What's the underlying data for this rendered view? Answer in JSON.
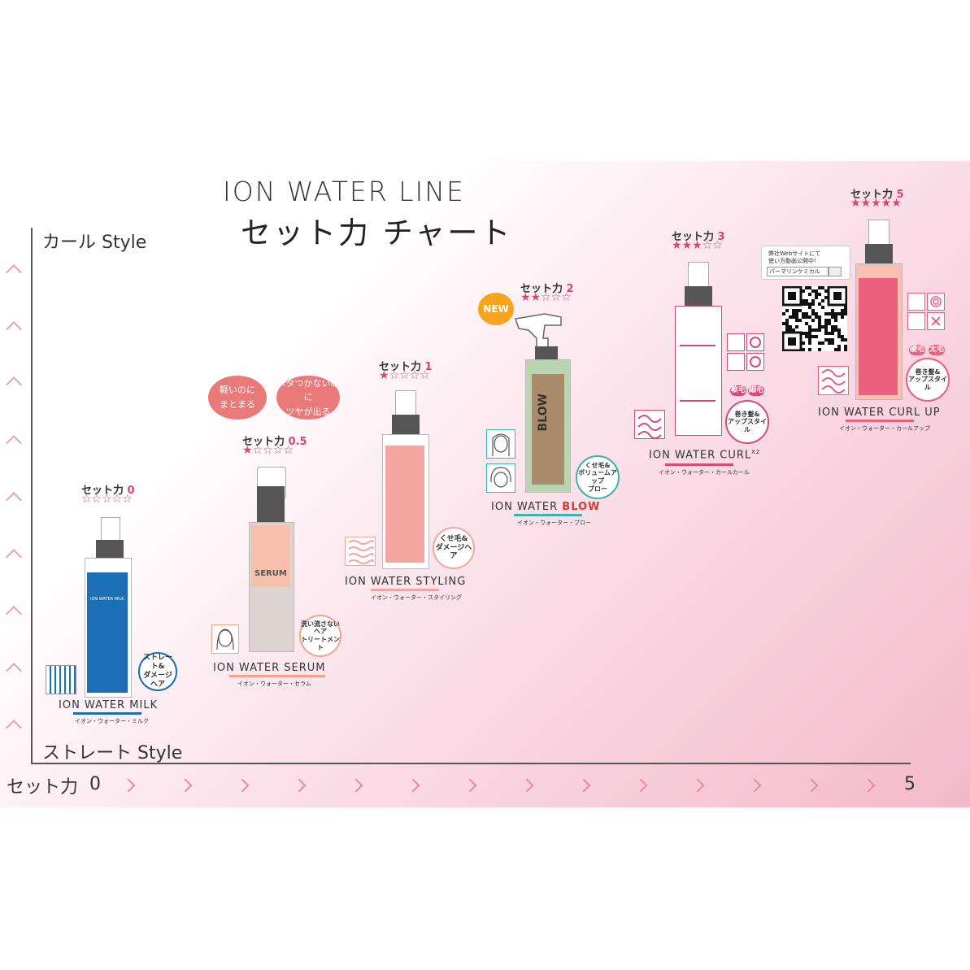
{
  "header": {
    "title_en": "ION WATER LINE",
    "title_jp": "セット力 チャート"
  },
  "axis": {
    "y_top": "カール Style",
    "y_bottom": "ストレート Style",
    "x_label": "セット力",
    "x_min": "0",
    "x_max": "5"
  },
  "products": [
    {
      "id": "milk",
      "set_label": "セット力",
      "set_value": "0",
      "stars": "☆☆☆☆☆",
      "name": "ION WATER MILK",
      "kana": "イオン・ウォーター・ミルク",
      "badge": "ストレート&\nダメージヘア",
      "label_text": "ION WATER MILK",
      "color": "#1b6fb5"
    },
    {
      "id": "serum",
      "set_label": "セット力",
      "set_value": "0.5",
      "stars": "★☆☆☆☆",
      "name": "ION WATER SERUM",
      "kana": "イオン・ウォーター・セラム",
      "badge": "洗い流さない\nヘア\nトリートメント",
      "label_text": "SERUM",
      "color": "#f2a586"
    },
    {
      "id": "styling",
      "set_label": "セット力",
      "set_value": "1",
      "stars": "★☆☆☆☆",
      "name": "ION WATER STYLING",
      "kana": "イオン・ウォーター・スタイリング",
      "badge": "くせ毛&\nダメージヘア",
      "color": "#f3a5a0"
    },
    {
      "id": "blow",
      "set_label": "セット力",
      "set_value": "2",
      "stars": "★★☆☆☆",
      "name_prefix": "ION WATER ",
      "name_accent": "BLOW",
      "kana": "イオン・ウォーター・ブロー",
      "badge": "くせ毛&\nボリュームアップ\nブロー",
      "label_text": "BLOW",
      "color": "#3bb3b0",
      "new": "NEW"
    },
    {
      "id": "curl",
      "set_label": "セット力",
      "set_value": "3",
      "stars": "★★★☆☆",
      "name": "ION WATER CURL",
      "name_sup": "X2",
      "kana": "イオン・ウォーター・カールカール",
      "badge": "巻き髪&\nアップスタイル",
      "tags": [
        "軟毛",
        "細毛"
      ],
      "color": "#d74a7e"
    },
    {
      "id": "curlup",
      "set_label": "セット力",
      "set_value": "5",
      "stars": "★★★★★",
      "name": "ION WATER CURL UP",
      "kana": "イオン・ウォーター・カールアップ",
      "badge": "巻き髪&\nアップスタイル",
      "tags": [
        "硬毛",
        "太毛"
      ],
      "color": "#ec5f7e"
    }
  ],
  "bubbles": [
    "軽いのに\nまとまる",
    "ベタつかないのに\nツヤが出る"
  ],
  "web": {
    "line1": "弊社Webサイトにて",
    "line2": "使い方動画公開中!",
    "search": "パーマリンケミカル"
  },
  "colors": {
    "pink": "#d9457a",
    "axis": "#555555"
  }
}
